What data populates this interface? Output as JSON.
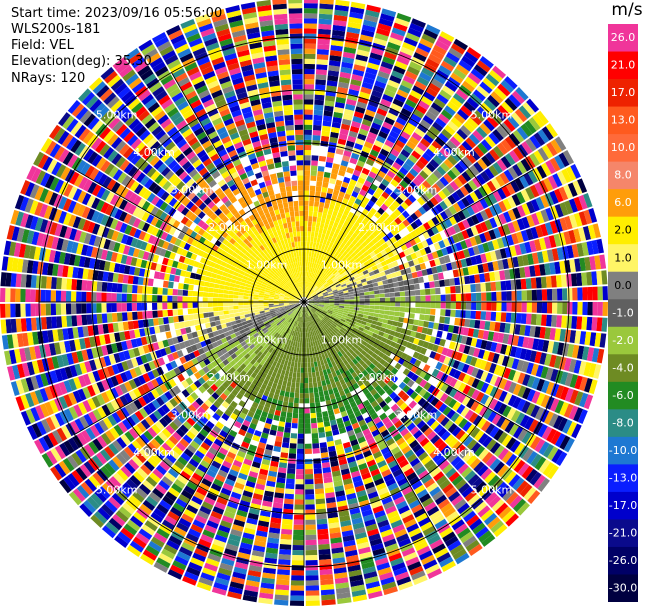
{
  "header": {
    "start_time": "Start time: 2023/09/16 05:56:00",
    "instrument": "WLS200s-181",
    "field": "Field: VEL",
    "elevation": "Elevation(deg): 35.30",
    "nrays": "NRays: 120"
  },
  "colorbar": {
    "unit": "m/s",
    "levels": [
      {
        "label": "26.0",
        "color": "#f0359a"
      },
      {
        "label": "21.0",
        "color": "#ff0000"
      },
      {
        "label": "17.0",
        "color": "#ee2200"
      },
      {
        "label": "13.0",
        "color": "#ff5a1e"
      },
      {
        "label": "10.0",
        "color": "#ff6a3a"
      },
      {
        "label": "8.0",
        "color": "#f5866a"
      },
      {
        "label": "6.0",
        "color": "#ff9d0a"
      },
      {
        "label": "2.0",
        "color": "#ffee00"
      },
      {
        "label": "1.0",
        "color": "#fff566"
      },
      {
        "label": "0.0",
        "color": "#808080"
      },
      {
        "label": "-1.0",
        "color": "#606060"
      },
      {
        "label": "-2.0",
        "color": "#9ac83c"
      },
      {
        "label": "-4.0",
        "color": "#6e8b23"
      },
      {
        "label": "-6.0",
        "color": "#228b22"
      },
      {
        "label": "-8.0",
        "color": "#2b8c86"
      },
      {
        "label": "-10.0",
        "color": "#1e78d2"
      },
      {
        "label": "-13.0",
        "color": "#0a1eff"
      },
      {
        "label": "-17.0",
        "color": "#0000cc"
      },
      {
        "label": "-21.0",
        "color": "#0a0a8c"
      },
      {
        "label": "-26.0",
        "color": "#000066"
      },
      {
        "label": "-30.0",
        "color": "#000040"
      }
    ]
  },
  "chart_data": {
    "type": "heatmap",
    "subtype": "polar-ppi",
    "field": "VEL",
    "unit": "m/s",
    "range_rings_km": [
      1.0,
      2.0,
      3.0,
      4.0,
      5.0
    ],
    "ring_labels": [
      "1.00km",
      "2.00km",
      "3.00km",
      "4.00km",
      "5.00km"
    ],
    "nrays": 120,
    "vmin": -30.0,
    "vmax": 26.0,
    "pattern": "near range (<~2.5 km): positive velocities (yellow/orange) to the north, negative velocities (green) to the south, near-zero (grey) along east-west; beyond ~2.5 km the field is noise"
  }
}
